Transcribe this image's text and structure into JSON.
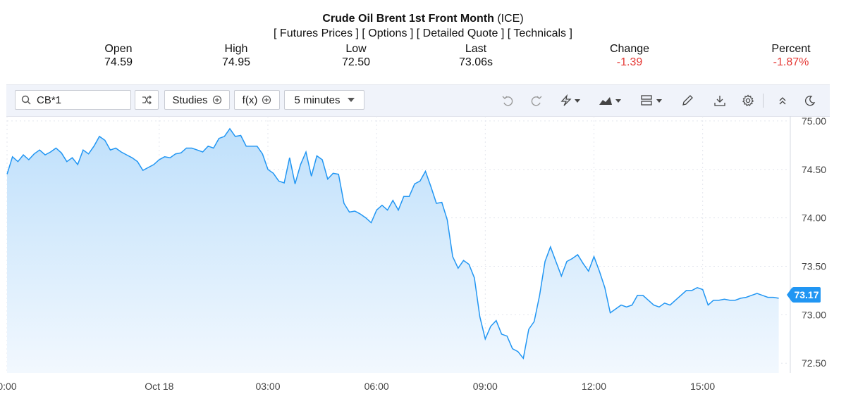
{
  "header": {
    "title": "Crude Oil Brent 1st Front Month",
    "exchange": "(ICE)",
    "links": [
      "[ Futures Prices ]",
      "[ Options ]",
      "[ Detailed Quote ]",
      "[ Technicals ]"
    ]
  },
  "quote": {
    "open_label": "Open",
    "open": "74.59",
    "high_label": "High",
    "high": "74.95",
    "low_label": "Low",
    "low": "72.50",
    "last_label": "Last",
    "last": "73.06s",
    "change_label": "Change",
    "change": "-1.39",
    "percent_label": "Percent",
    "percent": "-1.87%"
  },
  "toolbar": {
    "symbol": "CB*1",
    "studies_label": "Studies",
    "fx_label": "f(x)",
    "interval_label": "5 minutes",
    "icons": [
      "search-icon",
      "compare-icon",
      "plus-circle-icon",
      "chevron-down-icon",
      "undo-icon",
      "redo-icon",
      "lightning-icon",
      "area-chart-icon",
      "layout-icon",
      "pencil-icon",
      "download-icon",
      "gear-icon",
      "double-chevron-up-icon",
      "moon-icon"
    ]
  },
  "colors": {
    "line": "#2196f3",
    "fill_top": "#bfe0fb",
    "fill_bottom": "#f2f8fe",
    "negative": "#e53935",
    "grid": "#e3e6ee"
  },
  "current_price_label": "73.17",
  "chart_data": {
    "type": "area",
    "x_tick_labels": [
      "0:00",
      "Oct 18",
      "03:00",
      "06:00",
      "09:00",
      "12:00",
      "15:00"
    ],
    "x_tick_hours": [
      -2.8,
      0.0,
      2.0,
      4.0,
      6.0,
      8.0,
      10.0
    ],
    "x_range_hours": [
      -2.8,
      11.6
    ],
    "y_ticks": [
      72.5,
      73.0,
      73.5,
      74.0,
      74.5,
      75.0
    ],
    "y_tick_labels": [
      "72.50",
      "73.00",
      "73.50",
      "74.00",
      "74.50",
      "75.00"
    ],
    "ylim": [
      72.4,
      75.05
    ],
    "grid": true,
    "series": [
      {
        "x_hours": [
          -2.8,
          -2.7,
          -2.6,
          -2.5,
          -2.4,
          -2.3,
          -2.2,
          -2.1,
          -2.0,
          -1.9,
          -1.8,
          -1.7,
          -1.6,
          -1.5,
          -1.4,
          -1.3,
          -1.2,
          -1.1,
          -1.0,
          -0.9,
          -0.8,
          -0.7,
          -0.6,
          -0.5,
          -0.4,
          -0.3,
          -0.2,
          -0.1,
          0.0,
          0.1,
          0.2,
          0.3,
          0.4,
          0.5,
          0.6,
          0.7,
          0.8,
          0.9,
          1.0,
          1.1,
          1.2,
          1.3,
          1.4,
          1.5,
          1.6,
          1.7,
          1.8,
          1.9,
          2.0,
          2.1,
          2.2,
          2.3,
          2.4,
          2.5,
          2.6,
          2.7,
          2.8,
          2.9,
          3.0,
          3.1,
          3.2,
          3.3,
          3.4,
          3.5,
          3.6,
          3.7,
          3.8,
          3.9,
          4.0,
          4.1,
          4.2,
          4.3,
          4.4,
          4.5,
          4.6,
          4.7,
          4.8,
          4.9,
          5.0,
          5.1,
          5.2,
          5.3,
          5.4,
          5.5,
          5.6,
          5.7,
          5.8,
          5.9,
          6.0,
          6.1,
          6.2,
          6.3,
          6.4,
          6.5,
          6.6,
          6.7,
          6.8,
          6.9,
          7.0,
          7.1,
          7.2,
          7.3,
          7.4,
          7.5,
          7.6,
          7.7,
          7.8,
          7.9,
          8.0,
          8.1,
          8.2,
          8.3,
          8.4,
          8.5,
          8.6,
          8.7,
          8.8,
          8.9,
          9.0,
          9.1,
          9.2,
          9.3,
          9.4,
          9.5,
          9.6,
          9.7,
          9.8,
          9.9,
          10.0,
          10.1,
          10.2,
          10.3,
          10.4,
          10.5,
          10.6,
          10.7,
          10.8,
          10.9,
          11.0,
          11.1,
          11.2,
          11.3,
          11.4
        ],
        "values": [
          74.45,
          74.63,
          74.58,
          74.65,
          74.6,
          74.66,
          74.7,
          74.65,
          74.68,
          74.72,
          74.67,
          74.58,
          74.62,
          74.55,
          74.7,
          74.66,
          74.74,
          74.84,
          74.8,
          74.7,
          74.72,
          74.68,
          74.65,
          74.62,
          74.58,
          74.49,
          74.52,
          74.55,
          74.6,
          74.63,
          74.62,
          74.66,
          74.67,
          74.72,
          74.72,
          74.7,
          74.68,
          74.74,
          74.72,
          74.82,
          74.84,
          74.92,
          74.84,
          74.85,
          74.74,
          74.74,
          74.74,
          74.66,
          74.5,
          74.46,
          74.38,
          74.36,
          74.62,
          74.35,
          74.55,
          74.68,
          74.43,
          74.64,
          74.6,
          74.4,
          74.46,
          74.45,
          74.15,
          74.06,
          74.07,
          74.04,
          74.0,
          73.95,
          74.08,
          74.13,
          74.08,
          74.18,
          74.08,
          74.22,
          74.22,
          74.35,
          74.38,
          74.48,
          74.32,
          74.15,
          74.16,
          73.98,
          73.6,
          73.48,
          73.56,
          73.52,
          73.38,
          72.98,
          72.75,
          72.88,
          72.94,
          72.8,
          72.78,
          72.65,
          72.62,
          72.55,
          72.85,
          72.93,
          73.2,
          73.55,
          73.7,
          73.55,
          73.4,
          73.55,
          73.58,
          73.62,
          73.53,
          73.45,
          73.6,
          73.45,
          73.28,
          73.02,
          73.06,
          73.1,
          73.08,
          73.1,
          73.2,
          73.2,
          73.15,
          73.1,
          73.08,
          73.12,
          73.1,
          73.15,
          73.2,
          73.25,
          73.25,
          73.28,
          73.26,
          73.1,
          73.15,
          73.15,
          73.16,
          73.15,
          73.15,
          73.17,
          73.18,
          73.2,
          73.22,
          73.2,
          73.18,
          73.18,
          73.17
        ]
      }
    ]
  }
}
